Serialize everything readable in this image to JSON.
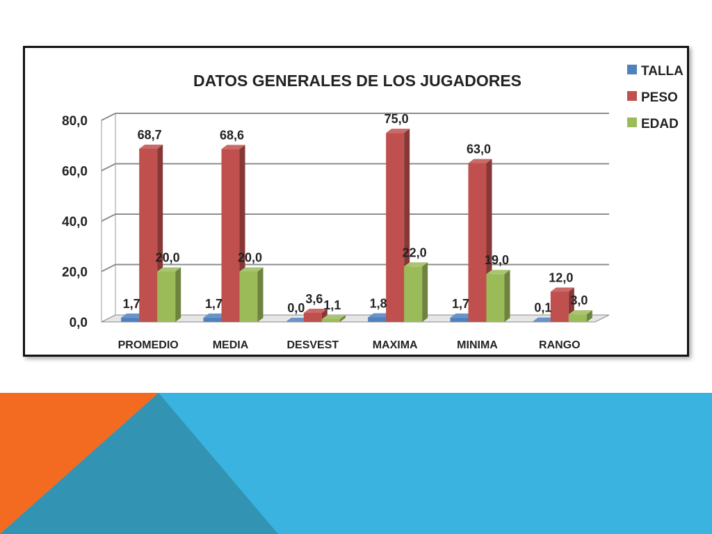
{
  "slide": {
    "colors": {
      "background": "#ffffff",
      "band_blue": "#3ab3e0",
      "accent_orange": "#f26b21",
      "accent_teal": "#3393b2"
    }
  },
  "chart_data": {
    "type": "bar",
    "title": "DATOS GENERALES DE LOS JUGADORES",
    "categories": [
      "PROMEDIO",
      "MEDIA",
      "DESVEST",
      "MAXIMA",
      "MINIMA",
      "RANGO"
    ],
    "series": [
      {
        "name": "TALLA",
        "color": "#4f81bd",
        "values": [
          1.7,
          1.7,
          0.0,
          1.8,
          1.7,
          0.1
        ],
        "labels": [
          "1,7",
          "1,7",
          "0,0",
          "1,8",
          "1,7",
          "0,1"
        ]
      },
      {
        "name": "PESO",
        "color": "#c0504d",
        "values": [
          68.7,
          68.6,
          3.6,
          75.0,
          63.0,
          12.0
        ],
        "labels": [
          "68,7",
          "68,6",
          "3,6",
          "75,0",
          "63,0",
          "12,0"
        ]
      },
      {
        "name": "EDAD",
        "color": "#9bbb59",
        "values": [
          20.0,
          20.0,
          1.1,
          22.0,
          19.0,
          3.0
        ],
        "labels": [
          "20,0",
          "20,0",
          "1,1",
          "22,0",
          "19,0",
          "3,0"
        ]
      }
    ],
    "ylim": [
      0,
      80
    ],
    "yticks": [
      "0,0",
      "20,0",
      "40,0",
      "60,0",
      "80,0"
    ],
    "xlabel": "",
    "ylabel": "",
    "grid": true,
    "style": "3d-column",
    "legend": "right"
  }
}
